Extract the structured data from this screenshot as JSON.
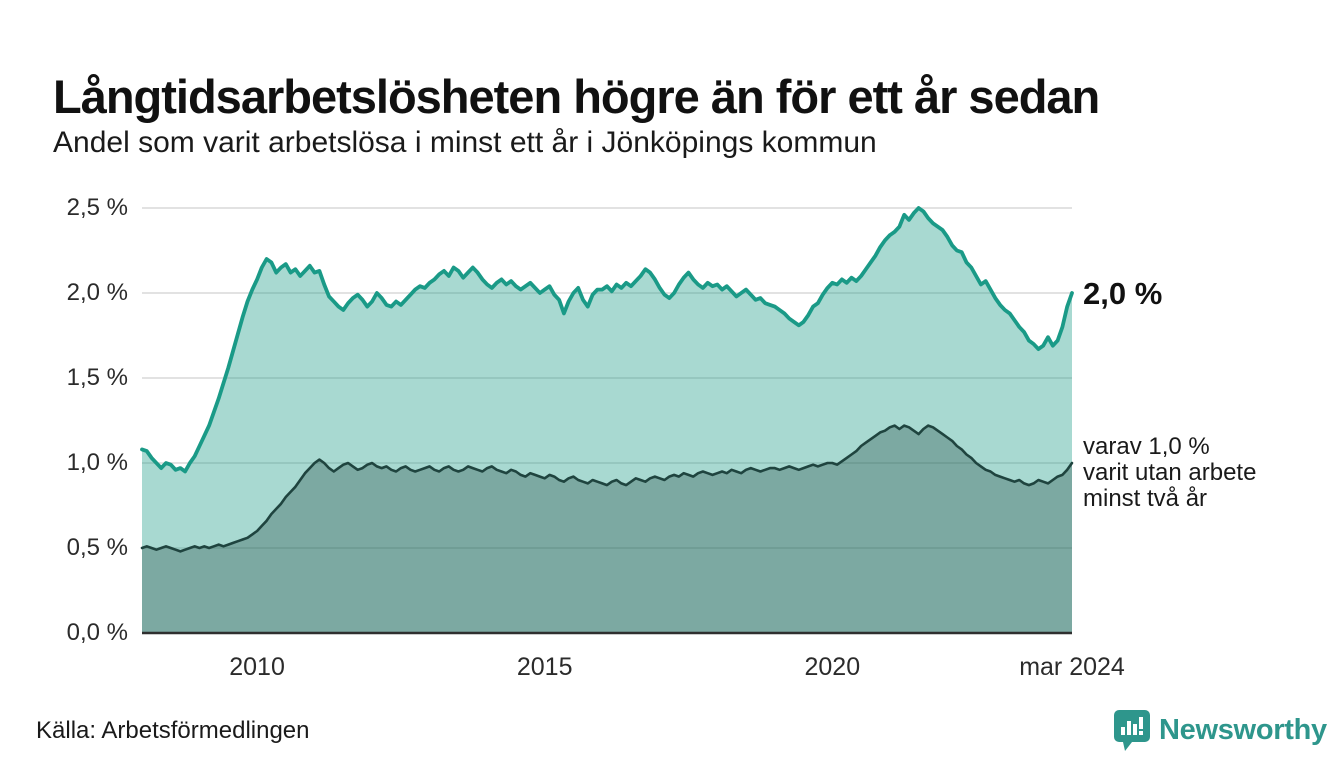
{
  "header": {
    "title": "Långtidsarbetslösheten högre än för ett år sedan",
    "subtitle": "Andel som varit arbetslösa i minst ett år i Jönköpings kommun"
  },
  "annotations": {
    "latest_total": "2,0 %",
    "secondary_line1": "varav 1,0 %",
    "secondary_line2": "varit utan arbete",
    "secondary_line3": "minst två år"
  },
  "footer": {
    "source": "Källa: Arbetsförmedlingen",
    "brand": "Newsworthy"
  },
  "colors": {
    "accent_teal_line": "#1a9a87",
    "area_light_fill": "rgba(26,154,135,0.38)",
    "dark_line": "#1f443f",
    "area_dark_fill": "rgba(31,68,63,0.32)",
    "gridline": "#d9d9d9",
    "axis_line": "#2f2f2f",
    "brand_teal": "#2e968c",
    "text_dark": "#111111"
  },
  "chart_data": {
    "type": "area",
    "title": "Långtidsarbetslösheten högre än för ett år sedan",
    "subtitle": "Andel som varit arbetslösa i minst ett år i Jönköpings kommun",
    "unit": "%",
    "frequency": "monthly",
    "start_month": "2008-01",
    "end_month": "2024-03",
    "ylim": [
      0,
      2.5
    ],
    "grid": true,
    "legend_position": "right-annotations",
    "y_ticks": [
      {
        "value": 2.5,
        "label": "2,5 %"
      },
      {
        "value": 2.0,
        "label": "2,0 %"
      },
      {
        "value": 1.5,
        "label": "1,5 %"
      },
      {
        "value": 1.0,
        "label": "1,0 %"
      },
      {
        "value": 0.5,
        "label": "0,5 %"
      },
      {
        "value": 0.0,
        "label": "0,0 %"
      }
    ],
    "x_ticks": [
      {
        "index": 24,
        "label": "2010"
      },
      {
        "index": 84,
        "label": "2015"
      },
      {
        "index": 144,
        "label": "2020"
      },
      {
        "index": 194,
        "label": "mar 2024"
      }
    ],
    "series": [
      {
        "name": "Andel som varit arbetslösa i minst ett år",
        "latest_value": 2.0,
        "values": [
          1.08,
          1.07,
          1.03,
          1.0,
          0.97,
          1.0,
          0.99,
          0.96,
          0.97,
          0.95,
          1.0,
          1.04,
          1.1,
          1.16,
          1.22,
          1.3,
          1.38,
          1.47,
          1.56,
          1.66,
          1.76,
          1.86,
          1.95,
          2.02,
          2.08,
          2.15,
          2.2,
          2.18,
          2.12,
          2.15,
          2.17,
          2.12,
          2.14,
          2.1,
          2.13,
          2.16,
          2.12,
          2.13,
          2.05,
          1.98,
          1.95,
          1.92,
          1.9,
          1.94,
          1.97,
          1.99,
          1.96,
          1.92,
          1.95,
          2.0,
          1.97,
          1.93,
          1.92,
          1.95,
          1.93,
          1.96,
          1.99,
          2.02,
          2.04,
          2.03,
          2.06,
          2.08,
          2.11,
          2.13,
          2.1,
          2.15,
          2.13,
          2.09,
          2.12,
          2.15,
          2.12,
          2.08,
          2.05,
          2.03,
          2.06,
          2.08,
          2.05,
          2.07,
          2.04,
          2.02,
          2.04,
          2.06,
          2.03,
          2.0,
          2.02,
          2.04,
          1.99,
          1.96,
          1.88,
          1.95,
          2.0,
          2.03,
          1.96,
          1.92,
          1.99,
          2.02,
          2.02,
          2.04,
          2.01,
          2.05,
          2.03,
          2.06,
          2.04,
          2.07,
          2.1,
          2.14,
          2.12,
          2.08,
          2.03,
          1.99,
          1.97,
          2.0,
          2.05,
          2.09,
          2.12,
          2.08,
          2.05,
          2.03,
          2.06,
          2.04,
          2.05,
          2.02,
          2.04,
          2.01,
          1.98,
          2.0,
          2.02,
          1.99,
          1.96,
          1.97,
          1.94,
          1.93,
          1.92,
          1.9,
          1.88,
          1.85,
          1.83,
          1.81,
          1.83,
          1.87,
          1.92,
          1.94,
          1.99,
          2.03,
          2.06,
          2.05,
          2.08,
          2.06,
          2.09,
          2.07,
          2.1,
          2.14,
          2.18,
          2.22,
          2.27,
          2.31,
          2.34,
          2.36,
          2.39,
          2.46,
          2.43,
          2.47,
          2.5,
          2.48,
          2.44,
          2.41,
          2.39,
          2.37,
          2.33,
          2.28,
          2.25,
          2.24,
          2.18,
          2.15,
          2.1,
          2.05,
          2.07,
          2.02,
          1.97,
          1.93,
          1.9,
          1.88,
          1.84,
          1.8,
          1.77,
          1.72,
          1.7,
          1.67,
          1.69,
          1.74,
          1.69,
          1.72,
          1.8,
          1.92,
          2.0
        ]
      },
      {
        "name": "varav utan arbete minst två år",
        "latest_value": 1.0,
        "values": [
          0.5,
          0.51,
          0.5,
          0.49,
          0.5,
          0.51,
          0.5,
          0.49,
          0.48,
          0.49,
          0.5,
          0.51,
          0.5,
          0.51,
          0.5,
          0.51,
          0.52,
          0.51,
          0.52,
          0.53,
          0.54,
          0.55,
          0.56,
          0.58,
          0.6,
          0.63,
          0.66,
          0.7,
          0.73,
          0.76,
          0.8,
          0.83,
          0.86,
          0.9,
          0.94,
          0.97,
          1.0,
          1.02,
          1.0,
          0.97,
          0.95,
          0.97,
          0.99,
          1.0,
          0.98,
          0.96,
          0.97,
          0.99,
          1.0,
          0.98,
          0.97,
          0.98,
          0.96,
          0.95,
          0.97,
          0.98,
          0.96,
          0.95,
          0.96,
          0.97,
          0.98,
          0.96,
          0.95,
          0.97,
          0.98,
          0.96,
          0.95,
          0.96,
          0.98,
          0.97,
          0.96,
          0.95,
          0.97,
          0.98,
          0.96,
          0.95,
          0.94,
          0.96,
          0.95,
          0.93,
          0.92,
          0.94,
          0.93,
          0.92,
          0.91,
          0.93,
          0.92,
          0.9,
          0.89,
          0.91,
          0.92,
          0.9,
          0.89,
          0.88,
          0.9,
          0.89,
          0.88,
          0.87,
          0.89,
          0.9,
          0.88,
          0.87,
          0.89,
          0.91,
          0.9,
          0.89,
          0.91,
          0.92,
          0.91,
          0.9,
          0.92,
          0.93,
          0.92,
          0.94,
          0.93,
          0.92,
          0.94,
          0.95,
          0.94,
          0.93,
          0.94,
          0.95,
          0.94,
          0.96,
          0.95,
          0.94,
          0.96,
          0.97,
          0.96,
          0.95,
          0.96,
          0.97,
          0.97,
          0.96,
          0.97,
          0.98,
          0.97,
          0.96,
          0.97,
          0.98,
          0.99,
          0.98,
          0.99,
          1.0,
          1.0,
          0.99,
          1.01,
          1.03,
          1.05,
          1.07,
          1.1,
          1.12,
          1.14,
          1.16,
          1.18,
          1.19,
          1.21,
          1.22,
          1.2,
          1.22,
          1.21,
          1.19,
          1.17,
          1.2,
          1.22,
          1.21,
          1.19,
          1.17,
          1.15,
          1.13,
          1.1,
          1.08,
          1.05,
          1.03,
          1.0,
          0.98,
          0.96,
          0.95,
          0.93,
          0.92,
          0.91,
          0.9,
          0.89,
          0.9,
          0.88,
          0.87,
          0.88,
          0.9,
          0.89,
          0.88,
          0.9,
          0.92,
          0.93,
          0.96,
          1.0
        ]
      }
    ]
  }
}
